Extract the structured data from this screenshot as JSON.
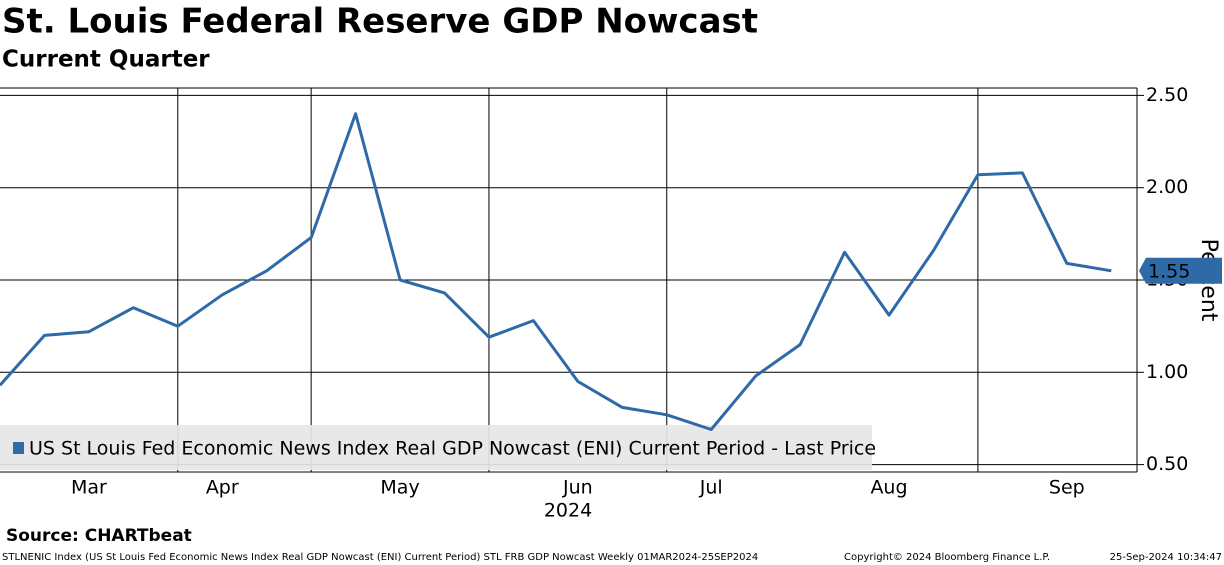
{
  "chart_data": {
    "type": "line",
    "title": "St. Louis Federal Reserve GDP Nowcast",
    "subtitle": "Current Quarter",
    "y_label": "Percent",
    "x_year_label": "2024",
    "categories": [
      null,
      null,
      "Mar",
      null,
      null,
      "Apr",
      null,
      null,
      null,
      "May",
      null,
      null,
      null,
      "Jun",
      null,
      null,
      "Jul",
      null,
      null,
      null,
      "Aug",
      null,
      null,
      null,
      "Sep",
      null
    ],
    "series": [
      {
        "name": "US St Louis Fed Economic News Index Real GDP Nowcast (ENI) Current Period - Last Price",
        "color": "#2e6aa8",
        "values": [
          0.93,
          1.2,
          1.22,
          1.35,
          1.25,
          1.42,
          1.55,
          1.73,
          2.4,
          1.5,
          1.43,
          1.19,
          1.28,
          0.95,
          0.81,
          0.77,
          0.69,
          0.98,
          1.15,
          1.65,
          1.31,
          1.66,
          2.07,
          2.08,
          1.59,
          1.55
        ]
      }
    ],
    "ylim": [
      0.46,
      2.54
    ],
    "yticks": [
      {
        "value": 0.5,
        "label": "0.50"
      },
      {
        "value": 1,
        "label": "1.00"
      },
      {
        "value": 1.5,
        "label": "1.50"
      },
      {
        "value": 2,
        "label": "2.00"
      },
      {
        "value": 2.5,
        "label": "2.50"
      }
    ],
    "grid": true,
    "source": "Source: CHARTbeat",
    "footer_left": "STLNENIC Index (US St Louis Fed Economic News Index Real GDP Nowcast (ENI) Current Period) STL FRB GDP Nowcast  Weekly 01MAR2024-25SEP2024",
    "footer_center": "Copyright© 2024 Bloomberg Finance L.P.",
    "footer_right": "25-Sep-2024 10:34:47"
  }
}
